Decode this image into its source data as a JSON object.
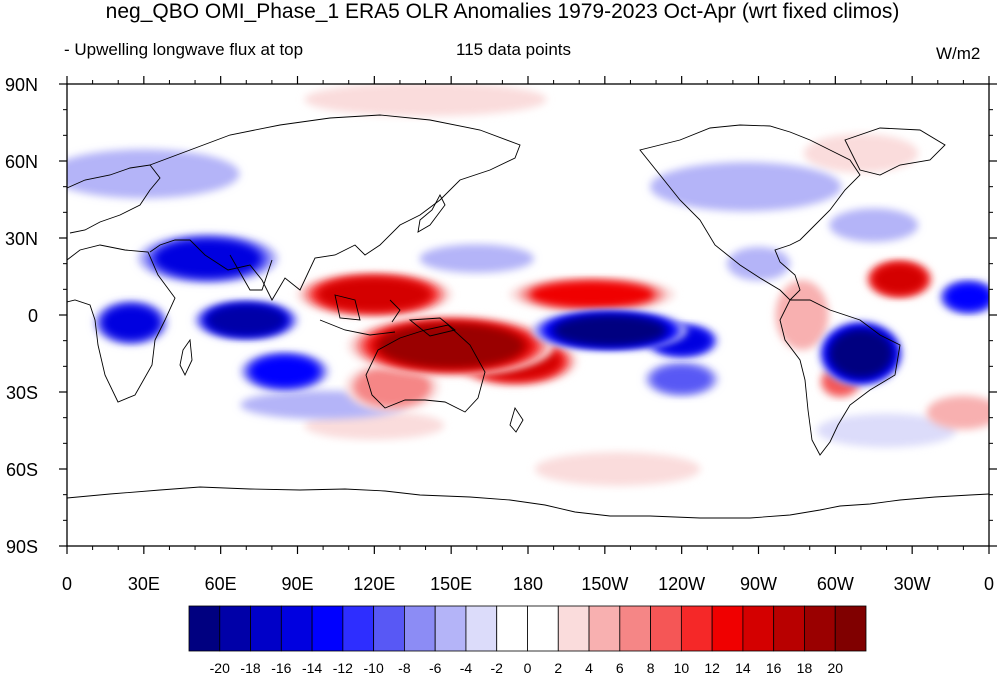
{
  "figure": {
    "title": "neg_QBO OMI_Phase_1 ERA5 OLR Anomalies 1979-2023 Oct-Apr (wrt fixed climos)",
    "subtitle_left": "- Upwelling longwave flux at top",
    "subtitle_center": "115 data points",
    "units": "W/m2"
  },
  "map": {
    "projection": "cylindrical-equidistant",
    "center_longitude": 180,
    "lon_range": [
      0,
      360
    ],
    "lat_range": [
      -90,
      90
    ],
    "x_ticks": [
      {
        "lon": 0,
        "label": "0"
      },
      {
        "lon": 30,
        "label": "30E"
      },
      {
        "lon": 60,
        "label": "60E"
      },
      {
        "lon": 90,
        "label": "90E"
      },
      {
        "lon": 120,
        "label": "120E"
      },
      {
        "lon": 150,
        "label": "150E"
      },
      {
        "lon": 180,
        "label": "180"
      },
      {
        "lon": 210,
        "label": "150W"
      },
      {
        "lon": 240,
        "label": "120W"
      },
      {
        "lon": 270,
        "label": "90W"
      },
      {
        "lon": 300,
        "label": "60W"
      },
      {
        "lon": 330,
        "label": "30W"
      },
      {
        "lon": 360,
        "label": "0"
      }
    ],
    "y_ticks": [
      {
        "lat": 90,
        "label": "90N"
      },
      {
        "lat": 60,
        "label": "60N"
      },
      {
        "lat": 30,
        "label": "30N"
      },
      {
        "lat": 0,
        "label": "0"
      },
      {
        "lat": -30,
        "label": "30S"
      },
      {
        "lat": -60,
        "label": "60S"
      },
      {
        "lat": -90,
        "label": "90S"
      }
    ],
    "anomaly_features": [
      {
        "lon": 150,
        "lat": -12,
        "dlon": 38,
        "dlat": 10,
        "value": 20
      },
      {
        "lon": 120,
        "lat": 8,
        "dlon": 28,
        "dlat": 7,
        "value": 16
      },
      {
        "lon": 175,
        "lat": -18,
        "dlon": 22,
        "dlat": 8,
        "value": 16
      },
      {
        "lon": 205,
        "lat": 8,
        "dlon": 30,
        "dlat": 5,
        "value": 13
      },
      {
        "lon": 127,
        "lat": -28,
        "dlon": 16,
        "dlat": 8,
        "value": 8
      },
      {
        "lon": 325,
        "lat": 14,
        "dlon": 11,
        "dlat": 6,
        "value": 16
      },
      {
        "lon": 302,
        "lat": -26,
        "dlon": 6,
        "dlat": 5,
        "value": 9
      },
      {
        "lon": 287,
        "lat": 0,
        "dlon": 8,
        "dlat": 12,
        "value": 5
      },
      {
        "lon": 140,
        "lat": 84,
        "dlon": 45,
        "dlat": 5,
        "value": 4
      },
      {
        "lon": 350,
        "lat": -38,
        "dlon": 12,
        "dlat": 5,
        "value": 6
      },
      {
        "lon": 120,
        "lat": -43,
        "dlon": 25,
        "dlat": 4,
        "value": 4
      },
      {
        "lon": 310,
        "lat": 63,
        "dlon": 20,
        "dlat": 6,
        "value": 4
      },
      {
        "lon": 215,
        "lat": -60,
        "dlon": 30,
        "dlat": 5,
        "value": 3
      },
      {
        "lon": 212,
        "lat": -6,
        "dlon": 28,
        "dlat": 6,
        "value": -20
      },
      {
        "lon": 240,
        "lat": -10,
        "dlon": 12,
        "dlat": 5,
        "value": -15
      },
      {
        "lon": 310,
        "lat": -15,
        "dlon": 14,
        "dlat": 11,
        "value": -20
      },
      {
        "lon": 70,
        "lat": -2,
        "dlon": 18,
        "dlat": 6,
        "value": -18
      },
      {
        "lon": 25,
        "lat": -3,
        "dlon": 12,
        "dlat": 7,
        "value": -14
      },
      {
        "lon": 55,
        "lat": 22,
        "dlon": 25,
        "dlat": 8,
        "value": -14
      },
      {
        "lon": 85,
        "lat": -22,
        "dlon": 15,
        "dlat": 6,
        "value": -12
      },
      {
        "lon": 352,
        "lat": 7,
        "dlon": 9,
        "dlat": 5,
        "value": -12
      },
      {
        "lon": 240,
        "lat": -25,
        "dlon": 12,
        "dlat": 5,
        "value": -8
      },
      {
        "lon": 30,
        "lat": 55,
        "dlon": 35,
        "dlat": 8,
        "value": -5
      },
      {
        "lon": 265,
        "lat": 50,
        "dlon": 35,
        "dlat": 8,
        "value": -4
      },
      {
        "lon": 315,
        "lat": 35,
        "dlon": 15,
        "dlat": 5,
        "value": -4
      },
      {
        "lon": 160,
        "lat": 22,
        "dlon": 20,
        "dlat": 4,
        "value": -5
      },
      {
        "lon": 100,
        "lat": -35,
        "dlon": 30,
        "dlat": 4,
        "value": -4
      },
      {
        "lon": 270,
        "lat": 20,
        "dlon": 10,
        "dlat": 5,
        "value": -4
      },
      {
        "lon": 320,
        "lat": -45,
        "dlon": 25,
        "dlat": 5,
        "value": -3
      }
    ]
  },
  "colorbar": {
    "labels": [
      "-20",
      "-18",
      "-16",
      "-14",
      "-12",
      "-10",
      "-8",
      "-6",
      "-4",
      "-2",
      "0",
      "2",
      "4",
      "6",
      "8",
      "10",
      "12",
      "14",
      "16",
      "18",
      "20"
    ],
    "colors": [
      "#000080",
      "#0000a8",
      "#0000c8",
      "#0000e0",
      "#0000ff",
      "#2e2eff",
      "#5858f5",
      "#8c8cf5",
      "#b4b4f8",
      "#dcdcfa",
      "#ffffff",
      "#ffffff",
      "#fadcdc",
      "#f8b0b0",
      "#f58686",
      "#f55656",
      "#f52828",
      "#f00000",
      "#d40000",
      "#b80000",
      "#9a0000",
      "#800000"
    ]
  }
}
